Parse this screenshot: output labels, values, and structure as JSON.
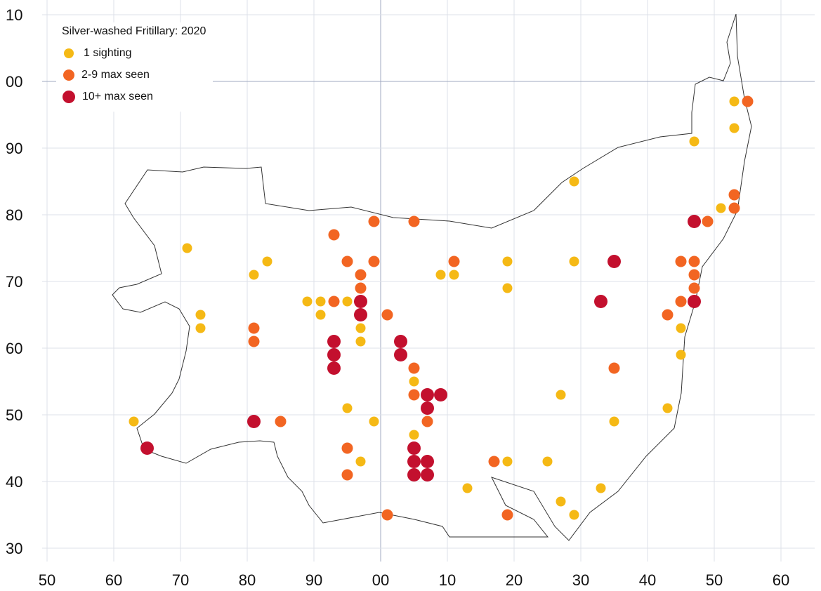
{
  "chart_data": {
    "type": "scatter",
    "title": "Silver-washed Fritillary:  2020",
    "x_ticks": [
      "50",
      "60",
      "70",
      "80",
      "90",
      "00",
      "10",
      "20",
      "30",
      "40",
      "50",
      "60"
    ],
    "y_ticks": [
      "10",
      "00",
      "90",
      "80",
      "70",
      "60",
      "50",
      "40",
      "30"
    ],
    "x_tick_values": [
      50,
      60,
      70,
      80,
      90,
      100,
      110,
      120,
      130,
      140,
      150,
      160
    ],
    "y_tick_values": [
      110,
      100,
      90,
      80,
      70,
      60,
      50,
      40,
      30
    ],
    "xlim": [
      50,
      160
    ],
    "ylim": [
      30,
      110
    ],
    "grid": true,
    "legend_position": "top-left",
    "series": [
      {
        "name": "1 sighting",
        "color": "#f5b915",
        "size": "small",
        "points": [
          [
            63,
            49
          ],
          [
            71,
            75
          ],
          [
            73,
            65
          ],
          [
            73,
            63
          ],
          [
            81,
            71
          ],
          [
            83,
            73
          ],
          [
            89,
            67
          ],
          [
            91,
            67
          ],
          [
            91,
            65
          ],
          [
            95,
            67
          ],
          [
            95,
            51
          ],
          [
            97,
            63
          ],
          [
            97,
            61
          ],
          [
            97,
            43
          ],
          [
            99,
            49
          ],
          [
            105,
            55
          ],
          [
            105,
            47
          ],
          [
            109,
            71
          ],
          [
            111,
            71
          ],
          [
            113,
            39
          ],
          [
            119,
            73
          ],
          [
            119,
            69
          ],
          [
            119,
            43
          ],
          [
            125,
            43
          ],
          [
            127,
            53
          ],
          [
            127,
            37
          ],
          [
            129,
            85
          ],
          [
            129,
            73
          ],
          [
            129,
            35
          ],
          [
            133,
            39
          ],
          [
            135,
            49
          ],
          [
            143,
            51
          ],
          [
            145,
            63
          ],
          [
            145,
            59
          ],
          [
            147,
            91
          ],
          [
            151,
            81
          ],
          [
            153,
            97
          ],
          [
            153,
            93
          ]
        ]
      },
      {
        "name": "2-9 max seen",
        "color": "#f26522",
        "size": "medium",
        "points": [
          [
            155,
            97
          ],
          [
            153,
            83
          ],
          [
            153,
            81
          ],
          [
            149,
            79
          ],
          [
            93,
            77
          ],
          [
            99,
            79
          ],
          [
            105,
            79
          ],
          [
            95,
            73
          ],
          [
            99,
            73
          ],
          [
            111,
            73
          ],
          [
            97,
            71
          ],
          [
            97,
            69
          ],
          [
            93,
            67
          ],
          [
            101,
            65
          ],
          [
            81,
            63
          ],
          [
            81,
            61
          ],
          [
            105,
            57
          ],
          [
            105,
            53
          ],
          [
            107,
            49
          ],
          [
            85,
            49
          ],
          [
            95,
            45
          ],
          [
            95,
            41
          ],
          [
            101,
            35
          ],
          [
            117,
            43
          ],
          [
            119,
            35
          ],
          [
            135,
            57
          ],
          [
            143,
            65
          ],
          [
            145,
            67
          ],
          [
            145,
            73
          ],
          [
            147,
            73
          ],
          [
            147,
            71
          ],
          [
            147,
            69
          ]
        ]
      },
      {
        "name": "10+ max seen",
        "color": "#c3102e",
        "size": "large",
        "points": [
          [
            65,
            45
          ],
          [
            81,
            49
          ],
          [
            97,
            67
          ],
          [
            97,
            65
          ],
          [
            93,
            61
          ],
          [
            93,
            59
          ],
          [
            93,
            57
          ],
          [
            103,
            61
          ],
          [
            103,
            59
          ],
          [
            107,
            53
          ],
          [
            109,
            53
          ],
          [
            107,
            51
          ],
          [
            105,
            45
          ],
          [
            105,
            43
          ],
          [
            107,
            43
          ],
          [
            105,
            41
          ],
          [
            107,
            41
          ],
          [
            133,
            67
          ],
          [
            135,
            73
          ],
          [
            147,
            79
          ],
          [
            147,
            67
          ]
        ]
      }
    ]
  }
}
